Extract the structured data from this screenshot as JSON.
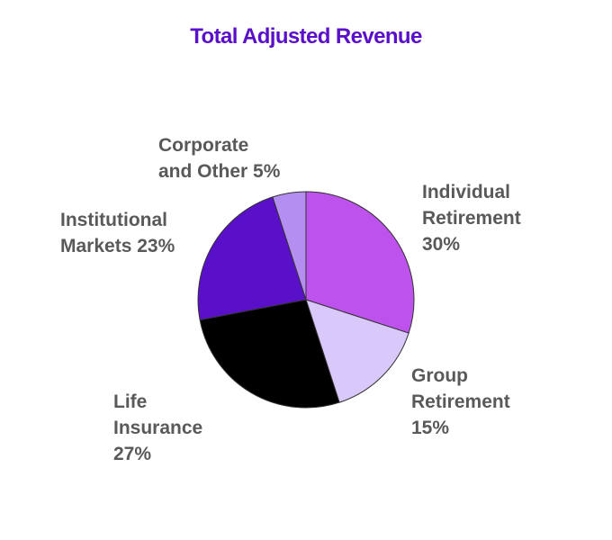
{
  "chart_data": {
    "type": "pie",
    "title": "Total Adjusted Revenue",
    "title_color": "#5a0fc8",
    "label_color": "#595959",
    "slices": [
      {
        "key": "individual",
        "label_lines": [
          "Individual",
          "Retirement",
          "30%"
        ],
        "value": 30,
        "color": "#bd52ec"
      },
      {
        "key": "group",
        "label_lines": [
          "Group",
          "Retirement",
          "15%"
        ],
        "value": 15,
        "color": "#d9c8fa"
      },
      {
        "key": "life",
        "label_lines": [
          "Life",
          "Insurance",
          "27%"
        ],
        "value": 27,
        "color": "#000000"
      },
      {
        "key": "institutional",
        "label_lines": [
          "Institutional",
          "Markets 23%"
        ],
        "value": 23,
        "color": "#5a0fc8"
      },
      {
        "key": "corporate",
        "label_lines": [
          "Corporate",
          "and Other 5%"
        ],
        "value": 5,
        "color": "#b48ef0"
      }
    ]
  }
}
